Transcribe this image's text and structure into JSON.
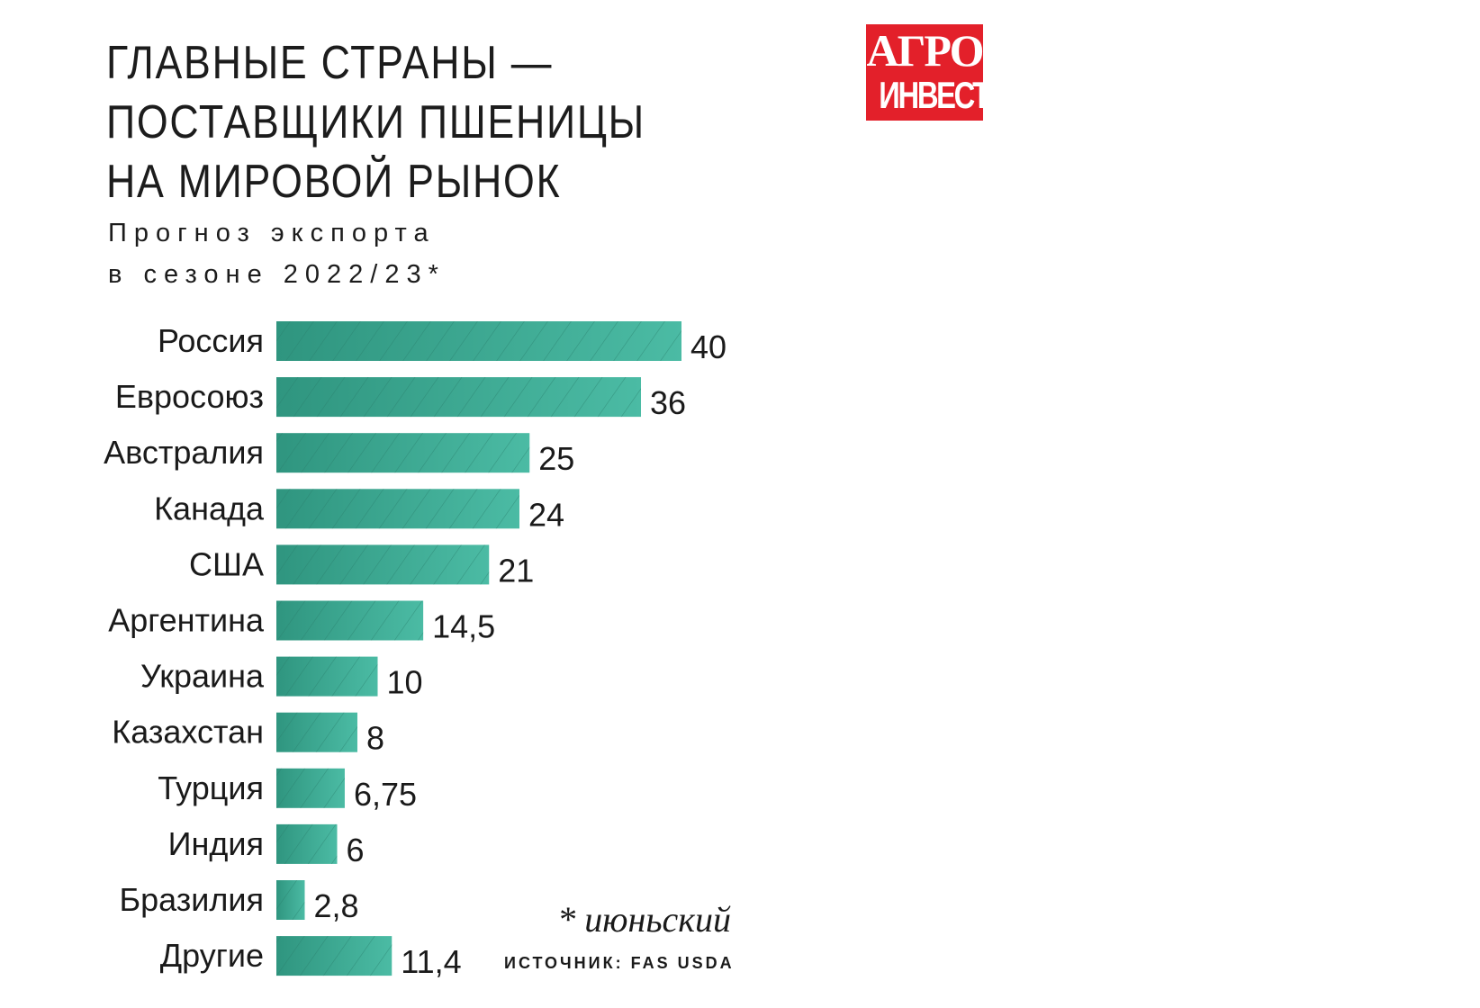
{
  "header": {
    "title_lines": [
      "ГЛАВНЫЕ СТРАНЫ —",
      "ПОСТАВЩИКИ ПШЕНИЦЫ",
      "НА МИРОВОЙ РЫНОК"
    ],
    "subtitle_lines": [
      "Прогноз экспорта",
      "в сезоне 2022/23*"
    ]
  },
  "logo": {
    "line1": "АГРО",
    "line2": "ИНВЕСТОР"
  },
  "footer": {
    "note": "* июньский",
    "source": "ИСТОЧНИК: FAS USDA"
  },
  "colors": {
    "bar": "#3fae98",
    "bar_dark": "#2e8c78",
    "logo_bg": "#e3202a"
  },
  "chart_data": {
    "type": "bar",
    "orientation": "horizontal",
    "categories": [
      "Россия",
      "Евросоюз",
      "Австралия",
      "Канада",
      "США",
      "Аргентина",
      "Украина",
      "Казахстан",
      "Турция",
      "Индия",
      "Бразилия",
      "Другие"
    ],
    "values": [
      40,
      36,
      25,
      24,
      21,
      14.5,
      10,
      8,
      6.75,
      6,
      2.8,
      11.4
    ],
    "value_labels": [
      "40",
      "36",
      "25",
      "24",
      "21",
      "14,5",
      "10",
      "8",
      "6,75",
      "6",
      "2,8",
      "11,4"
    ],
    "xlim": [
      0,
      40
    ],
    "grid": false,
    "legend": "none"
  }
}
